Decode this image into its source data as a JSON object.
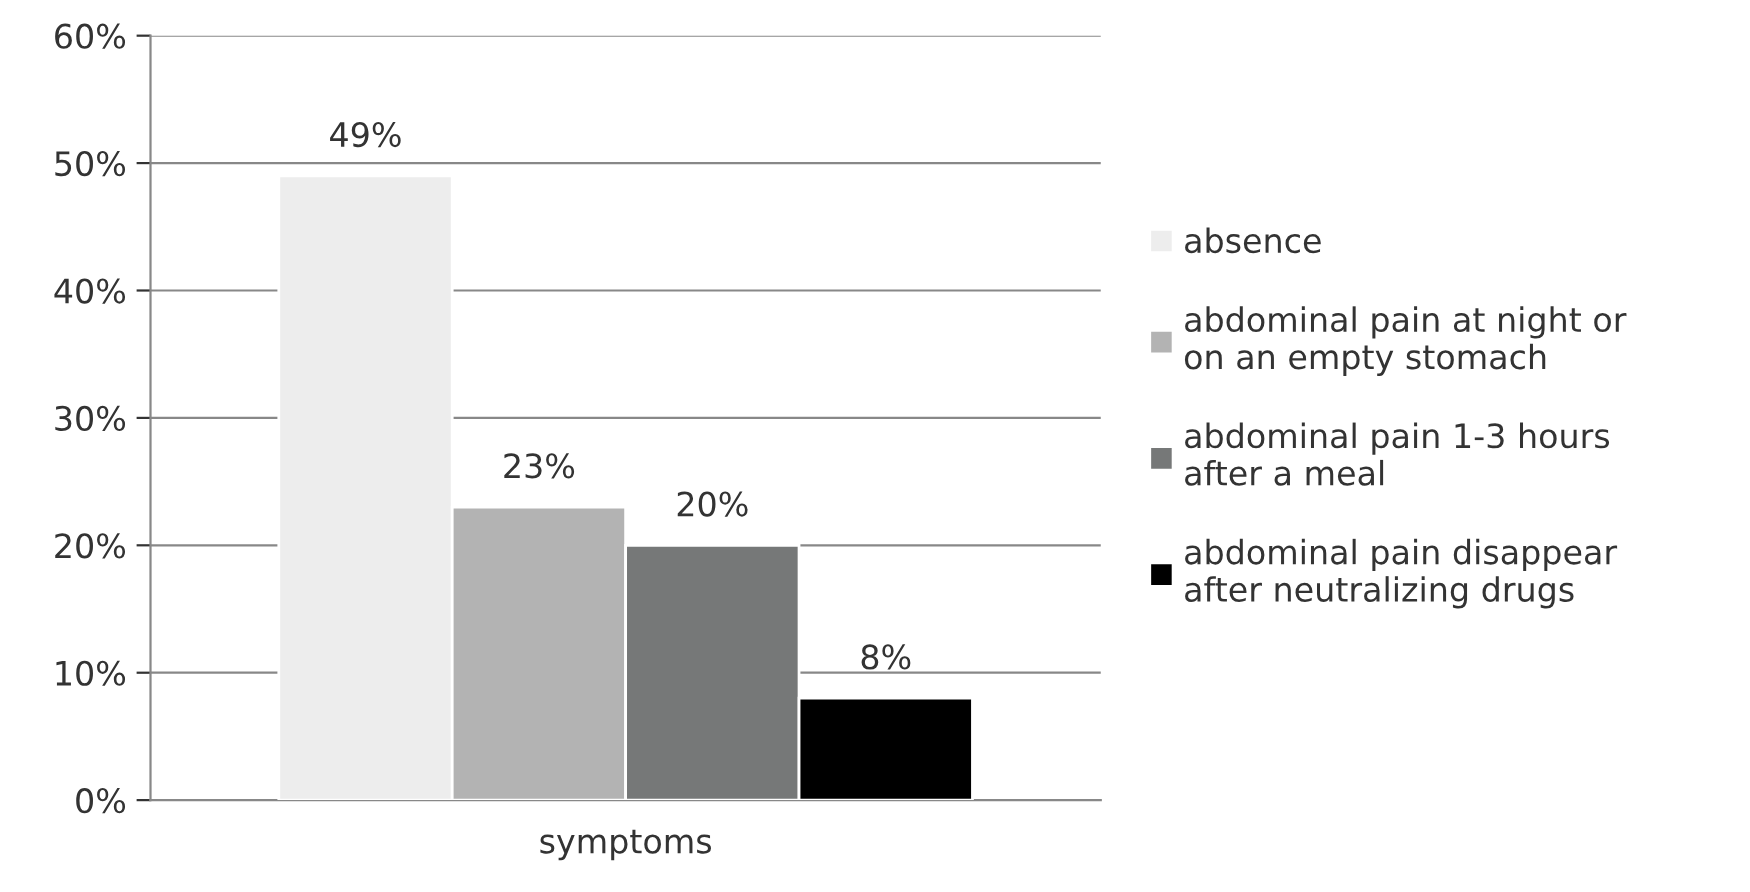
{
  "chart_data": {
    "type": "bar",
    "categories": [
      "symptoms"
    ],
    "series": [
      {
        "name": "absence",
        "color": "#ededed",
        "values": [
          49
        ]
      },
      {
        "name": "abdominal pain at night or\non an empty stomach",
        "color": "#b3b3b3",
        "values": [
          23
        ]
      },
      {
        "name": "abdominal pain 1-3 hours\nafter a meal",
        "color": "#767878",
        "values": [
          20
        ]
      },
      {
        "name": "abdominal pain disappear\nafter neutralizing drugs",
        "color": "#000000",
        "values": [
          8
        ]
      }
    ],
    "ylim": [
      0,
      60
    ],
    "yticks": [
      {
        "value": 0,
        "label": "0%"
      },
      {
        "value": 10,
        "label": "10%"
      },
      {
        "value": 20,
        "label": "20%"
      },
      {
        "value": 30,
        "label": "30%"
      },
      {
        "value": 40,
        "label": "40%"
      },
      {
        "value": 50,
        "label": "50%"
      },
      {
        "value": 60,
        "label": "60%"
      }
    ],
    "value_labels": [
      "49%",
      "23%",
      "20%",
      "8%"
    ],
    "grid": "y",
    "legend": "right"
  }
}
